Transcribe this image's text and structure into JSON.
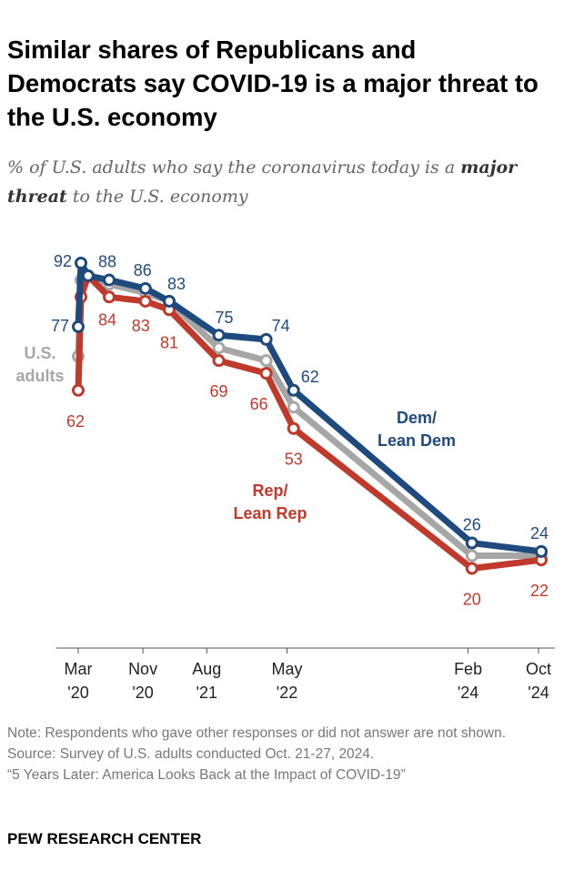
{
  "title": "Similar shares of Republicans and Democrats say COVID-19 is a major threat to the U.S. economy",
  "subtitle": {
    "pre": "% of U.S. adults who say the coronavirus today is a",
    "bold": "major threat",
    "post": "to the U.S. economy"
  },
  "notes": {
    "note": "Note: Respondents who gave other responses or did not answer are not shown.",
    "source": "Source: Survey of U.S. adults conducted Oct. 21-27, 2024.",
    "report": "“5 Years Later: America Looks Back at the Impact of COVID-19”"
  },
  "brand": "PEW RESEARCH CENTER",
  "chart_data": {
    "type": "line",
    "title": "",
    "xlabel": "",
    "ylabel": "",
    "grid": false,
    "x_ticks": [
      {
        "date": "2020-03",
        "line1": "Mar",
        "line2": "'20"
      },
      {
        "date": "2020-11",
        "line1": "Nov",
        "line2": "'20"
      },
      {
        "date": "2021-08",
        "line1": "Aug",
        "line2": "'21"
      },
      {
        "date": "2022-05",
        "line1": "May",
        "line2": "'22"
      },
      {
        "date": "2024-02",
        "line1": "Feb",
        "line2": "'24"
      },
      {
        "date": "2024-10",
        "line1": "Oct",
        "line2": "'24"
      }
    ],
    "x": [
      "2020-03-10",
      "2020-03-20",
      "2020-04-15",
      "2020-07-01",
      "2020-11-10",
      "2021-02-05",
      "2021-08-05",
      "2022-01-25",
      "2022-05-05",
      "2024-02-15",
      "2024-10-25"
    ],
    "series": [
      {
        "name": "Dem/\nLean Dem",
        "color": "#1f4a7d",
        "values": [
          77,
          92,
          89,
          88,
          86,
          83,
          75,
          74,
          62,
          26,
          24
        ],
        "labels": [
          true,
          true,
          false,
          true,
          true,
          true,
          true,
          true,
          true,
          true,
          true
        ]
      },
      {
        "name": "U.S.\nadults",
        "color": "#a6a6a6",
        "values": [
          70,
          88,
          89,
          87,
          85,
          83,
          72,
          69,
          58,
          23,
          23
        ],
        "labels": [
          false,
          false,
          false,
          false,
          false,
          false,
          false,
          false,
          false,
          false,
          false
        ]
      },
      {
        "name": "Rep/\nLean Rep",
        "color": "#bf3a2b",
        "values": [
          62,
          84,
          89,
          84,
          83,
          81,
          69,
          66,
          53,
          20,
          22
        ],
        "labels": [
          true,
          false,
          false,
          true,
          true,
          true,
          true,
          true,
          true,
          true,
          true
        ]
      }
    ]
  }
}
